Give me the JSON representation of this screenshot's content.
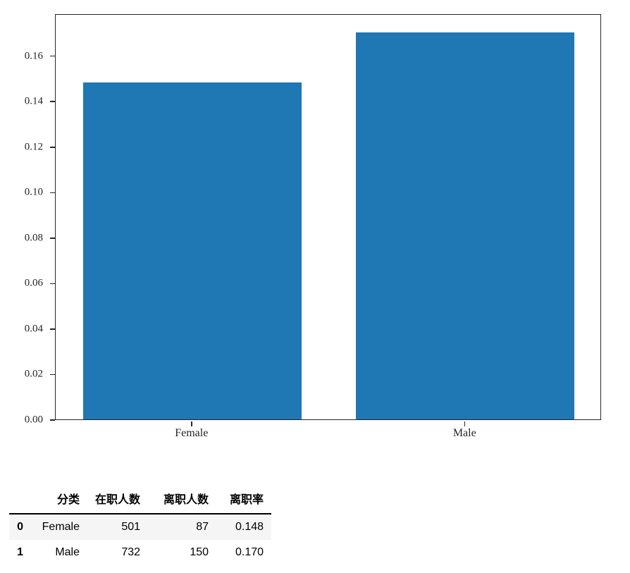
{
  "chart_data": {
    "type": "bar",
    "categories": [
      "Female",
      "Male"
    ],
    "values": [
      0.148,
      0.17
    ],
    "bar_color": "#1f77b4",
    "title": "",
    "xlabel": "",
    "ylabel": "",
    "ylim": [
      0,
      0.1785
    ],
    "yticks": [
      0,
      0.02,
      0.04,
      0.06,
      0.08,
      0.1,
      0.12,
      0.14,
      0.16
    ],
    "ytick_labels": [
      "0.00",
      "0.02",
      "0.04",
      "0.06",
      "0.08",
      "0.10",
      "0.12",
      "0.14",
      "0.16"
    ],
    "grid": false,
    "legend_position": "none"
  },
  "table": {
    "columns": [
      "",
      "分类",
      "在职人数",
      "离职人数",
      "离职率"
    ],
    "rows": [
      {
        "index": "0",
        "category": "Female",
        "active_count": "501",
        "left_count": "87",
        "rate": "0.148"
      },
      {
        "index": "1",
        "category": "Male",
        "active_count": "732",
        "left_count": "150",
        "rate": "0.170"
      }
    ]
  },
  "colors": {
    "bar_blue": "#1f77b4",
    "axis": "#262626",
    "table_stripe": "#f5f5f5",
    "table_border": "#000000"
  }
}
